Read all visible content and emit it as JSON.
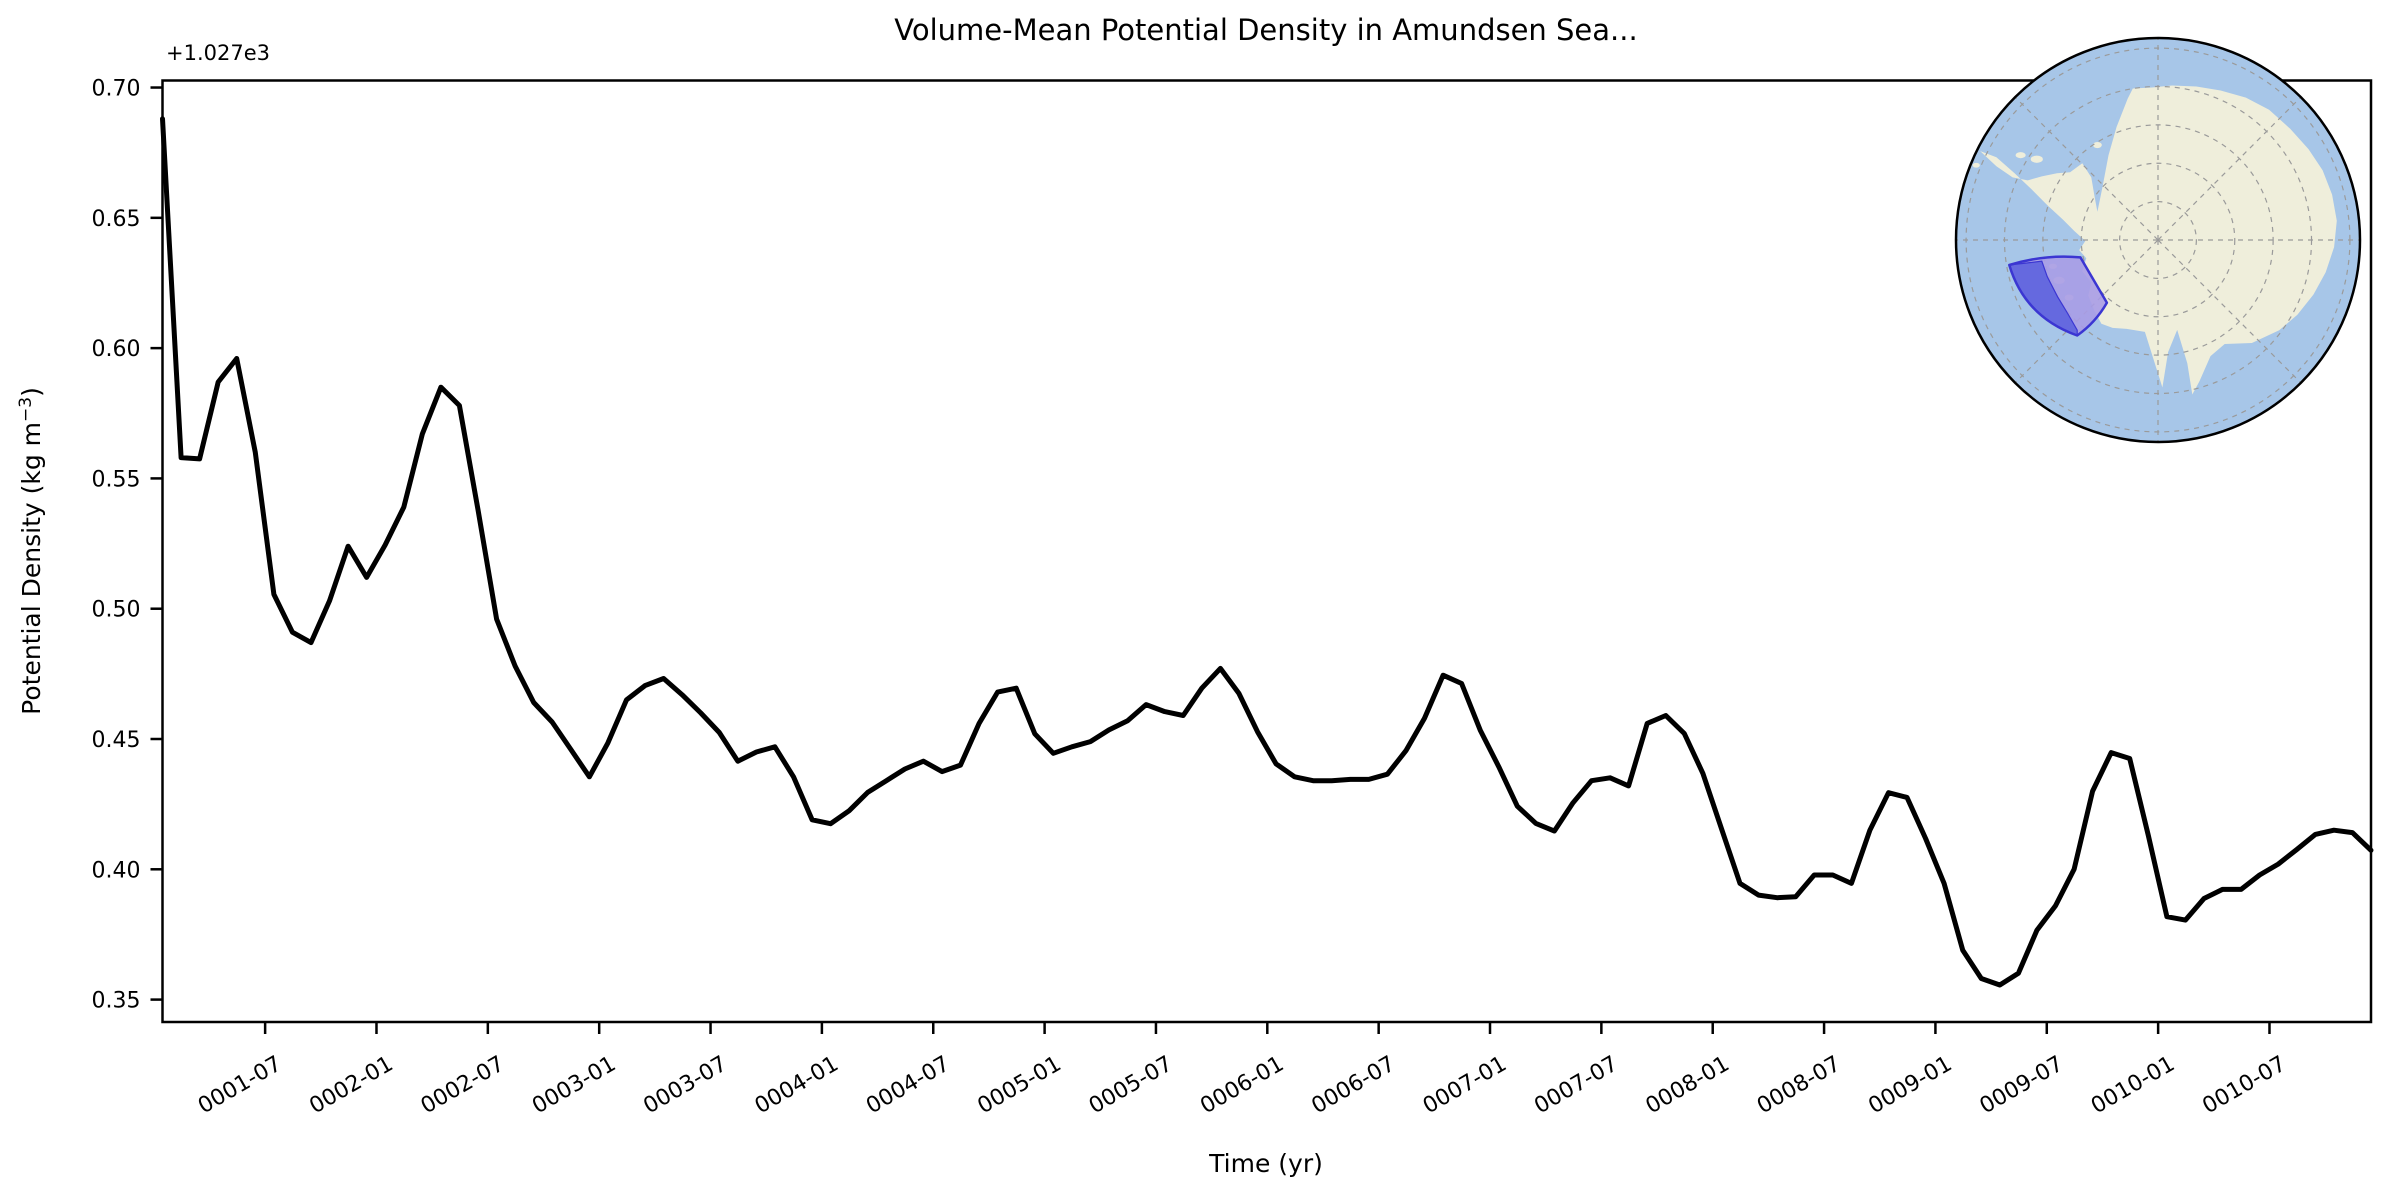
{
  "page": {
    "background": "#ffffff"
  },
  "title": "Volume-Mean Potential Density in Amundsen Sea...",
  "axes": {
    "xlabel": "Time (yr)",
    "ylabel_prefix": "Potential Density (kg m",
    "ylabel_superscript": "−3",
    "ylabel_suffix": ")",
    "y_offset_label": "+1.027e3"
  },
  "chart_data": {
    "type": "line",
    "series_name": "volume-mean potential density (monthly)",
    "x_start": "0001-01",
    "x_step": "1 month",
    "n_points": 120,
    "x_tick_labels": [
      "0001-07",
      "0002-01",
      "0002-07",
      "0003-01",
      "0003-07",
      "0004-01",
      "0004-07",
      "0005-01",
      "0005-07",
      "0006-01",
      "0006-07",
      "0007-01",
      "0007-07",
      "0008-01",
      "0008-07",
      "0009-01",
      "0009-07",
      "0010-01",
      "0010-07"
    ],
    "y_tick_labels": [
      "0.35",
      "0.40",
      "0.45",
      "0.50",
      "0.55",
      "0.60",
      "0.65",
      "0.70"
    ],
    "y_ticks": [
      0.35,
      0.4,
      0.45,
      0.5,
      0.55,
      0.6,
      0.65,
      0.7
    ],
    "y_offset": "+1.027e3",
    "ylim": [
      0.3414,
      0.7027
    ],
    "grid": false,
    "line_color": "#000000",
    "line_width": 5,
    "values": [
      0.688,
      0.558,
      0.5575,
      0.587,
      0.596,
      0.56,
      0.5055,
      0.491,
      0.487,
      0.503,
      0.524,
      0.512,
      0.5245,
      0.539,
      0.567,
      0.585,
      0.578,
      0.538,
      0.496,
      0.478,
      0.464,
      0.4565,
      0.446,
      0.4355,
      0.4485,
      0.465,
      0.4705,
      0.4732,
      0.467,
      0.46,
      0.4525,
      0.4415,
      0.445,
      0.447,
      0.4355,
      0.419,
      0.4175,
      0.4225,
      0.4295,
      0.434,
      0.4385,
      0.4415,
      0.4375,
      0.44,
      0.456,
      0.468,
      0.4695,
      0.452,
      0.4445,
      0.447,
      0.449,
      0.4535,
      0.457,
      0.4632,
      0.4605,
      0.459,
      0.4695,
      0.4771,
      0.4675,
      0.4528,
      0.4405,
      0.4355,
      0.434,
      0.434,
      0.4345,
      0.4345,
      0.4365,
      0.4455,
      0.458,
      0.4745,
      0.4713,
      0.4534,
      0.4394,
      0.4242,
      0.4176,
      0.4147,
      0.4255,
      0.434,
      0.4351,
      0.432,
      0.456,
      0.459,
      0.4521,
      0.4368,
      0.4157,
      0.3946,
      0.3901,
      0.3891,
      0.3895,
      0.3978,
      0.3978,
      0.3946,
      0.415,
      0.4294,
      0.4276,
      0.4118,
      0.3946,
      0.369,
      0.3581,
      0.3556,
      0.3601,
      0.3766,
      0.386,
      0.4,
      0.43,
      0.4448,
      0.4425,
      0.413,
      0.3818,
      0.3805,
      0.3888,
      0.3923,
      0.3923,
      0.3978,
      0.402,
      0.4076,
      0.4134,
      0.415,
      0.4141,
      0.4073
    ]
  },
  "inset": {
    "name": "Antarctica south polar stereographic map, Amundsen Sea sector highlighted",
    "colors": {
      "ocean": "#a7c6e8",
      "land": "#efeedb",
      "graticule": "#9a9a9a",
      "region_fill_over_land": "#a89ce6",
      "region_fill_over_ocean": "#6064de",
      "region_edge": "#3b36d2",
      "globe_border": "#000000"
    }
  }
}
